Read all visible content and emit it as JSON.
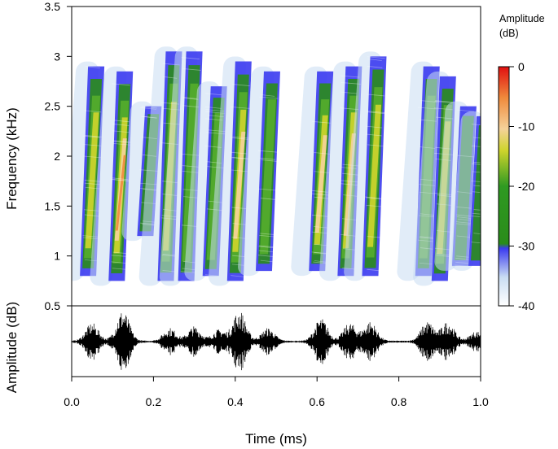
{
  "chart_data": [
    {
      "type": "heatmap",
      "kind": "spectrogram",
      "ylabel": "Frequency (kHz)",
      "xlabel": "Time (ms)",
      "xlim": [
        0.0,
        1.0
      ],
      "ylim": [
        0.5,
        3.5
      ],
      "x_ticks": [
        "0.0",
        "0.2",
        "0.4",
        "0.6",
        "0.8",
        "1.0"
      ],
      "y_ticks": [
        "1",
        "1.5",
        "2",
        "2.5",
        "3",
        "3.5"
      ],
      "y_bottom_label": "0.5",
      "grid": false,
      "colorbar": {
        "title_line1": "Amplitude",
        "title_line2": "(dB)",
        "range": [
          -40,
          0
        ],
        "ticks": [
          "0",
          "-10",
          "-20",
          "-30",
          "-40"
        ],
        "colors": [
          "#ffffff",
          "#c9dcf2",
          "#3b3bf0",
          "#2a8c1a",
          "#cfd42c",
          "#f5d29a",
          "#f08a3c",
          "#e01010"
        ]
      },
      "syllables": [
        {
          "t": 0.05,
          "f_low": 0.8,
          "f_high": 2.9,
          "peak_db": -10
        },
        {
          "t": 0.12,
          "f_low": 0.75,
          "f_high": 2.85,
          "peak_db": -3
        },
        {
          "t": 0.19,
          "f_low": 1.2,
          "f_high": 2.5,
          "peak_db": -20
        },
        {
          "t": 0.24,
          "f_low": 0.75,
          "f_high": 3.05,
          "peak_db": -10
        },
        {
          "t": 0.29,
          "f_low": 0.75,
          "f_high": 3.05,
          "peak_db": -12
        },
        {
          "t": 0.35,
          "f_low": 0.8,
          "f_high": 2.7,
          "peak_db": -15
        },
        {
          "t": 0.41,
          "f_low": 0.75,
          "f_high": 2.95,
          "peak_db": -7
        },
        {
          "t": 0.48,
          "f_low": 0.85,
          "f_high": 2.85,
          "peak_db": -13
        },
        {
          "t": 0.61,
          "f_low": 0.85,
          "f_high": 2.85,
          "peak_db": -5
        },
        {
          "t": 0.68,
          "f_low": 0.8,
          "f_high": 2.9,
          "peak_db": -6
        },
        {
          "t": 0.74,
          "f_low": 0.8,
          "f_high": 3.0,
          "peak_db": -9
        },
        {
          "t": 0.87,
          "f_low": 0.8,
          "f_high": 2.9,
          "peak_db": -13
        },
        {
          "t": 0.91,
          "f_low": 0.75,
          "f_high": 2.8,
          "peak_db": -10
        },
        {
          "t": 0.96,
          "f_low": 0.9,
          "f_high": 2.5,
          "peak_db": -20
        },
        {
          "t": 1.0,
          "f_low": 0.9,
          "f_high": 2.4,
          "peak_db": -20
        }
      ]
    },
    {
      "type": "line",
      "kind": "waveform",
      "ylabel": "Amplitude (dB)",
      "xlabel": "Time (ms)",
      "xlim": [
        0.0,
        1.0
      ],
      "baseline_style": "dashed grey",
      "bursts": [
        {
          "t": 0.05,
          "amp": 0.55
        },
        {
          "t": 0.125,
          "amp": 0.95
        },
        {
          "t": 0.24,
          "amp": 0.4
        },
        {
          "t": 0.3,
          "amp": 0.45
        },
        {
          "t": 0.36,
          "amp": 0.35
        },
        {
          "t": 0.41,
          "amp": 0.95
        },
        {
          "t": 0.48,
          "amp": 0.4
        },
        {
          "t": 0.61,
          "amp": 0.7
        },
        {
          "t": 0.68,
          "amp": 0.55
        },
        {
          "t": 0.73,
          "amp": 0.6
        },
        {
          "t": 0.87,
          "amp": 0.6
        },
        {
          "t": 0.92,
          "amp": 0.6
        },
        {
          "t": 0.99,
          "amp": 0.3
        }
      ]
    }
  ]
}
